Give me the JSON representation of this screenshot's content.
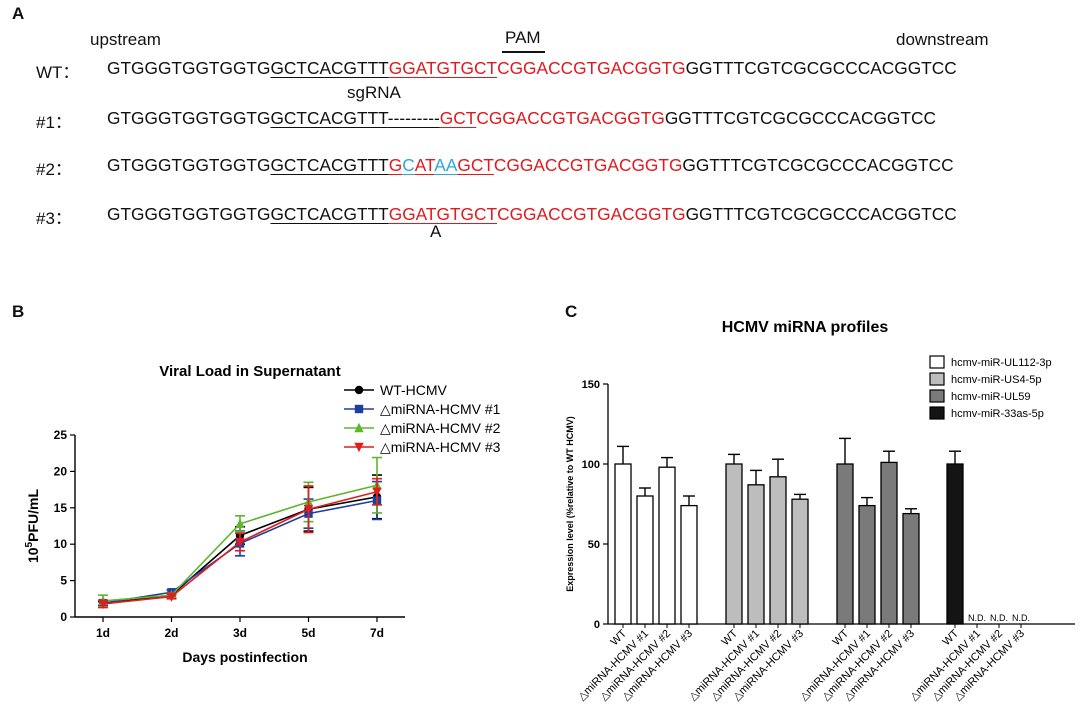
{
  "panelA": {
    "letter": "A",
    "upstream": "upstream",
    "downstream": "downstream",
    "pam": "PAM",
    "sgrna": "sgRNA",
    "mutation_note": "A",
    "rows": [
      {
        "label": "WT：",
        "pre": "GTGGGTGGTGGTG",
        "guide": "GCTCACGTTT",
        "mid_red": "GGATGTGCT",
        "mid_blue": "",
        "tail_red": "CGGACCGTGACGGTG",
        "post": "GGTTTCGTCGCGCCCACGGTCC"
      },
      {
        "label": "#1：",
        "pre": "GTGGGTGGTGGTG",
        "guide": "GCTCACGTTT",
        "deletion": "---------",
        "mid_red": "GCT",
        "tail_red": "CGGACCGTGACGGTG",
        "post": "GGTTTCGTCGCGCCCACGGTCC"
      },
      {
        "label": "#2：",
        "pre": "GTGGGTGGTGGTG",
        "guide": "GCTCACGTTT",
        "mixed": [
          [
            "G",
            "red"
          ],
          [
            "C",
            "blue"
          ],
          [
            "AT",
            "red"
          ],
          [
            "AA",
            "blue"
          ],
          [
            "GCT",
            "red"
          ]
        ],
        "tail_red": "CGGACCGTGACGGTG",
        "post": "GGTTTCGTCGCGCCCACGGTCC"
      },
      {
        "label": "#3：",
        "pre": "GTGGGTGGTGGTG",
        "guide": "GCTCACGTTT",
        "mid_red": "GGATGTGCT",
        "tail_red": "CGGACCGTGACGGTG",
        "post": "GGTTTCGTCGCGCCCACGGTCC"
      }
    ]
  },
  "panelB": {
    "letter": "B"
  },
  "panelC": {
    "letter": "C"
  },
  "colors": {
    "wt": "#000000",
    "d1": "#1f3fa0",
    "d2": "#5fb52e",
    "d3": "#e11d1d",
    "bar1": "#ffffff",
    "bar2": "#bdbdbd",
    "bar3": "#7a7a7a",
    "bar4": "#141414",
    "seq_red": "#e0191e",
    "seq_blue": "#2aa8d8"
  },
  "chart_data": [
    {
      "type": "line",
      "title": "Viral Load in Supernatant",
      "xlabel": "Days postinfection",
      "ylabel_base": "10",
      "ylabel_sup": "5",
      "ylabel_rest": "PFU/mL",
      "categories": [
        "1d",
        "2d",
        "3d",
        "5d",
        "7d"
      ],
      "ylim": [
        0,
        25
      ],
      "yticks": [
        "0",
        "5",
        "10",
        "15",
        "20",
        "25"
      ],
      "legend_position": "top-right",
      "series": [
        {
          "name": "WT-HCMV",
          "marker": "circle",
          "color": "#000000",
          "values": [
            1.8,
            3.0,
            11.2,
            14.8,
            16.5
          ],
          "err": [
            0.3,
            0.3,
            1.2,
            3.0,
            3.0
          ]
        },
        {
          "name": "△miRNA-HCMV #1",
          "marker": "square",
          "color": "#1f3fa0",
          "values": [
            1.9,
            3.4,
            10.1,
            14.2,
            16.0
          ],
          "err": [
            0.3,
            0.3,
            1.7,
            2.0,
            2.6
          ]
        },
        {
          "name": "△miRNA-HCMV #2",
          "marker": "triangle-up",
          "color": "#5fb52e",
          "values": [
            2.2,
            3.0,
            12.8,
            15.8,
            18.1
          ],
          "err": [
            0.8,
            0.3,
            1.1,
            2.7,
            3.8
          ]
        },
        {
          "name": "△miRNA-HCMV #3",
          "marker": "triangle-down",
          "color": "#e11d1d",
          "values": [
            1.8,
            2.8,
            10.3,
            14.8,
            17.2
          ],
          "err": [
            0.5,
            0.3,
            1.2,
            3.2,
            1.8
          ]
        }
      ]
    },
    {
      "type": "bar",
      "title": "HCMV miRNA profiles",
      "ylabel": "Expression level (%relative to WT HCMV)",
      "ylim": [
        0,
        150
      ],
      "yticks": [
        "0",
        "50",
        "100",
        "150"
      ],
      "legend_position": "top-right",
      "categories": [
        "WT",
        "△miRNA-HCMV #1",
        "△miRNA-HCMV #2",
        "△miRNA-HCMV #3"
      ],
      "nd_label": "N.D.",
      "series": [
        {
          "name": "hcmv-miR-UL112-3p",
          "color": "#ffffff",
          "values": [
            100,
            80,
            98,
            74
          ],
          "err": [
            11,
            5,
            6,
            6
          ]
        },
        {
          "name": "hcmv-miR-US4-5p",
          "color": "#bdbdbd",
          "values": [
            100,
            87,
            92,
            78
          ],
          "err": [
            6,
            9,
            11,
            3
          ]
        },
        {
          "name": "hcmv-miR-UL59",
          "color": "#7a7a7a",
          "values": [
            100,
            74,
            101,
            69
          ],
          "err": [
            16,
            5,
            7,
            3
          ]
        },
        {
          "name": "hcmv-miR-33as-5p",
          "color": "#141414",
          "values": [
            100,
            null,
            null,
            null
          ],
          "err": [
            8,
            null,
            null,
            null
          ]
        }
      ]
    }
  ]
}
